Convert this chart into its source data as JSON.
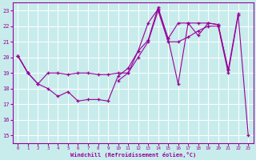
{
  "xlabel": "Windchill (Refroidissement éolien,°C)",
  "background_color": "#c8ecec",
  "grid_color": "#ffffff",
  "line_color": "#990099",
  "xlim": [
    -0.5,
    23.5
  ],
  "ylim": [
    14.5,
    23.5
  ],
  "yticks": [
    15,
    16,
    17,
    18,
    19,
    20,
    21,
    22,
    23
  ],
  "xticks": [
    0,
    1,
    2,
    3,
    4,
    5,
    6,
    7,
    8,
    9,
    10,
    11,
    12,
    13,
    14,
    15,
    16,
    17,
    18,
    19,
    20,
    21,
    22,
    23
  ],
  "series": [
    [
      20.1,
      19.0,
      18.3,
      18.0,
      17.5,
      17.8,
      17.2,
      17.3,
      17.3,
      17.2,
      18.8,
      19.3,
      20.4,
      22.2,
      23.1,
      21.2,
      18.3,
      22.2,
      22.2,
      22.2,
      22.1,
      19.2,
      null,
      null
    ],
    [
      20.1,
      19.0,
      18.3,
      19.0,
      19.0,
      18.9,
      19.0,
      19.0,
      18.9,
      18.9,
      19.0,
      19.0,
      20.4,
      21.1,
      23.2,
      21.2,
      22.2,
      22.2,
      21.4,
      22.2,
      22.1,
      19.2,
      22.8,
      null
    ],
    [
      20.1,
      19.0,
      null,
      null,
      null,
      null,
      null,
      null,
      null,
      null,
      18.5,
      19.0,
      20.0,
      21.0,
      23.0,
      21.0,
      21.0,
      21.3,
      21.7,
      22.0,
      22.0,
      19.0,
      22.7,
      15.0
    ]
  ]
}
